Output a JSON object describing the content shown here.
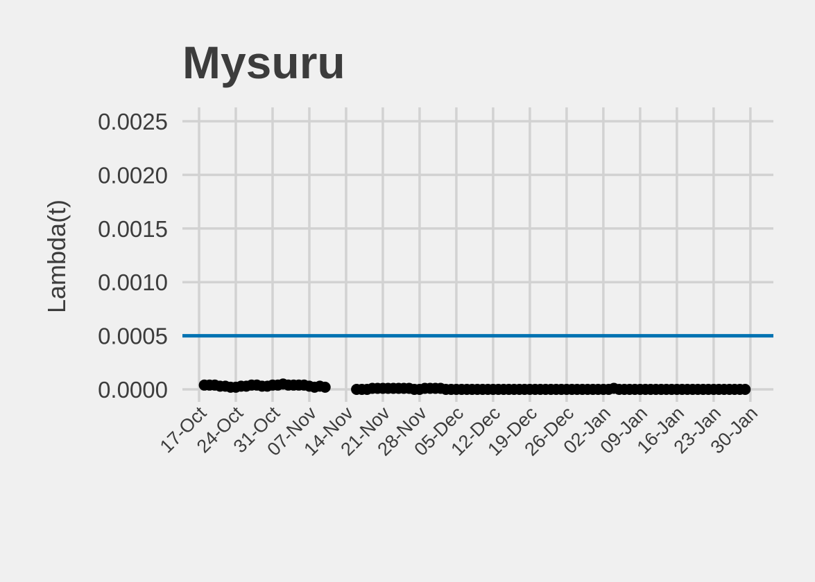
{
  "chart_data": {
    "type": "line",
    "title": "Mysuru",
    "xlabel": "",
    "ylabel": "Lambda(t)",
    "ylim": [
      -0.0001,
      0.0025
    ],
    "xlim": [
      "2020-10-12",
      "2021-01-30"
    ],
    "y_ticks": [
      {
        "value": 0.0,
        "label": "0.0000"
      },
      {
        "value": 0.0005,
        "label": "0.0005"
      },
      {
        "value": 0.001,
        "label": "0.0010"
      },
      {
        "value": 0.0015,
        "label": "0.0015"
      },
      {
        "value": 0.002,
        "label": "0.0020"
      },
      {
        "value": 0.0025,
        "label": "0.0025"
      }
    ],
    "x_ticks": [
      {
        "date": "2020-10-17",
        "label": "17-Oct"
      },
      {
        "date": "2020-10-24",
        "label": "24-Oct"
      },
      {
        "date": "2020-10-31",
        "label": "31-Oct"
      },
      {
        "date": "2020-11-07",
        "label": "07-Nov"
      },
      {
        "date": "2020-11-14",
        "label": "14-Nov"
      },
      {
        "date": "2020-11-21",
        "label": "21-Nov"
      },
      {
        "date": "2020-11-28",
        "label": "28-Nov"
      },
      {
        "date": "2020-12-05",
        "label": "05-Dec"
      },
      {
        "date": "2020-12-12",
        "label": "12-Dec"
      },
      {
        "date": "2020-12-19",
        "label": "19-Dec"
      },
      {
        "date": "2020-12-26",
        "label": "26-Dec"
      },
      {
        "date": "2021-01-02",
        "label": "02-Jan"
      },
      {
        "date": "2021-01-09",
        "label": "09-Jan"
      },
      {
        "date": "2021-01-16",
        "label": "16-Jan"
      },
      {
        "date": "2021-01-23",
        "label": "23-Jan"
      },
      {
        "date": "2021-01-30",
        "label": "30-Jan"
      }
    ],
    "reference_line": {
      "y": 0.0005,
      "color": "#0072b2"
    },
    "grid": true,
    "series": [
      {
        "color": "#000000",
        "segments": [
          [
            [
              "2020-10-18",
              4e-05
            ],
            [
              "2020-10-19",
              4e-05
            ],
            [
              "2020-10-20",
              4e-05
            ],
            [
              "2020-10-21",
              3e-05
            ],
            [
              "2020-10-22",
              3e-05
            ],
            [
              "2020-10-23",
              2e-05
            ],
            [
              "2020-10-24",
              2e-05
            ],
            [
              "2020-10-25",
              3e-05
            ],
            [
              "2020-10-26",
              3e-05
            ],
            [
              "2020-10-27",
              4e-05
            ],
            [
              "2020-10-28",
              4e-05
            ],
            [
              "2020-10-29",
              3e-05
            ],
            [
              "2020-10-30",
              3e-05
            ],
            [
              "2020-10-31",
              4e-05
            ],
            [
              "2020-11-01",
              4e-05
            ],
            [
              "2020-11-02",
              5e-05
            ],
            [
              "2020-11-03",
              4e-05
            ],
            [
              "2020-11-04",
              4e-05
            ],
            [
              "2020-11-05",
              4e-05
            ],
            [
              "2020-11-06",
              4e-05
            ],
            [
              "2020-11-07",
              3e-05
            ],
            [
              "2020-11-08",
              2e-05
            ],
            [
              "2020-11-09",
              3e-05
            ],
            [
              "2020-11-10",
              2e-05
            ]
          ],
          [
            [
              "2020-11-16",
              0.0
            ],
            [
              "2020-11-17",
              0.0
            ],
            [
              "2020-11-18",
              0.0
            ],
            [
              "2020-11-19",
              1e-05
            ],
            [
              "2020-11-20",
              1e-05
            ],
            [
              "2020-11-21",
              1e-05
            ],
            [
              "2020-11-22",
              1e-05
            ],
            [
              "2020-11-23",
              1e-05
            ],
            [
              "2020-11-24",
              1e-05
            ],
            [
              "2020-11-25",
              1e-05
            ],
            [
              "2020-11-26",
              1e-05
            ],
            [
              "2020-11-27",
              0.0
            ],
            [
              "2020-11-28",
              0.0
            ],
            [
              "2020-11-29",
              1e-05
            ],
            [
              "2020-11-30",
              1e-05
            ],
            [
              "2020-12-01",
              1e-05
            ],
            [
              "2020-12-02",
              1e-05
            ],
            [
              "2020-12-03",
              0.0
            ],
            [
              "2020-12-04",
              0.0
            ],
            [
              "2020-12-05",
              0.0
            ],
            [
              "2020-12-06",
              0.0
            ],
            [
              "2020-12-07",
              0.0
            ],
            [
              "2020-12-08",
              0.0
            ],
            [
              "2020-12-09",
              0.0
            ],
            [
              "2020-12-10",
              0.0
            ],
            [
              "2020-12-11",
              0.0
            ],
            [
              "2020-12-12",
              0.0
            ],
            [
              "2020-12-13",
              0.0
            ],
            [
              "2020-12-14",
              0.0
            ],
            [
              "2020-12-15",
              0.0
            ],
            [
              "2020-12-16",
              0.0
            ],
            [
              "2020-12-17",
              0.0
            ],
            [
              "2020-12-18",
              0.0
            ],
            [
              "2020-12-19",
              0.0
            ],
            [
              "2020-12-20",
              0.0
            ],
            [
              "2020-12-21",
              0.0
            ],
            [
              "2020-12-22",
              0.0
            ],
            [
              "2020-12-23",
              0.0
            ],
            [
              "2020-12-24",
              0.0
            ],
            [
              "2020-12-25",
              0.0
            ],
            [
              "2020-12-26",
              0.0
            ],
            [
              "2020-12-27",
              0.0
            ],
            [
              "2020-12-28",
              0.0
            ],
            [
              "2020-12-29",
              0.0
            ],
            [
              "2020-12-30",
              0.0
            ],
            [
              "2020-12-31",
              0.0
            ],
            [
              "2021-01-01",
              0.0
            ],
            [
              "2021-01-02",
              0.0
            ],
            [
              "2021-01-03",
              0.0
            ],
            [
              "2021-01-04",
              1e-05
            ],
            [
              "2021-01-05",
              0.0
            ],
            [
              "2021-01-06",
              0.0
            ],
            [
              "2021-01-07",
              0.0
            ],
            [
              "2021-01-08",
              0.0
            ],
            [
              "2021-01-09",
              0.0
            ],
            [
              "2021-01-10",
              0.0
            ],
            [
              "2021-01-11",
              0.0
            ],
            [
              "2021-01-12",
              0.0
            ],
            [
              "2021-01-13",
              0.0
            ],
            [
              "2021-01-14",
              0.0
            ],
            [
              "2021-01-15",
              0.0
            ],
            [
              "2021-01-16",
              0.0
            ],
            [
              "2021-01-17",
              0.0
            ],
            [
              "2021-01-18",
              0.0
            ],
            [
              "2021-01-19",
              0.0
            ],
            [
              "2021-01-20",
              0.0
            ],
            [
              "2021-01-21",
              0.0
            ],
            [
              "2021-01-22",
              0.0
            ],
            [
              "2021-01-23",
              0.0
            ],
            [
              "2021-01-24",
              0.0
            ],
            [
              "2021-01-25",
              0.0
            ],
            [
              "2021-01-26",
              0.0
            ],
            [
              "2021-01-27",
              0.0
            ],
            [
              "2021-01-28",
              0.0
            ],
            [
              "2021-01-29",
              0.0
            ]
          ]
        ]
      }
    ]
  }
}
